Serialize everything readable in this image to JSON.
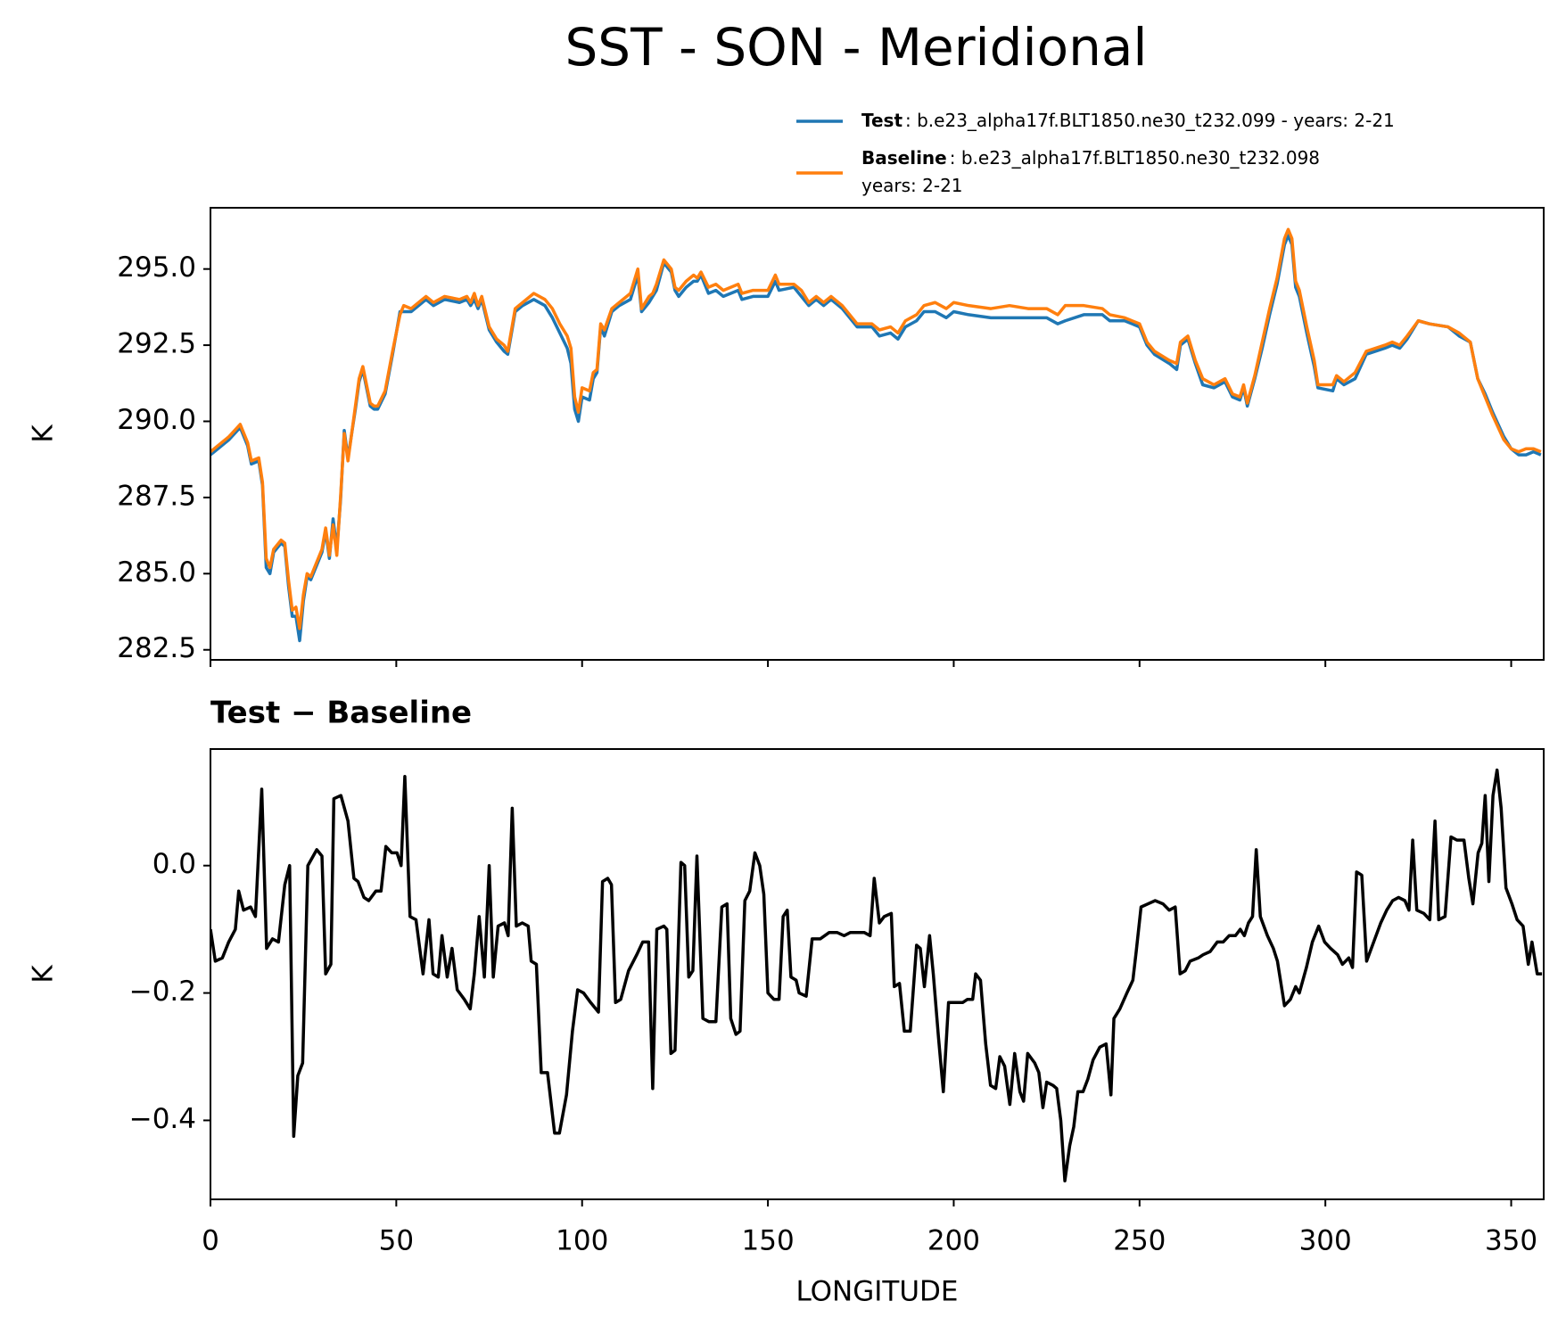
{
  "title": "SST - SON - Meridional",
  "chart_data": [
    {
      "type": "line",
      "ylabel": "K",
      "legend": "upper right",
      "xticklabels": false,
      "xlim": [
        0,
        358.75
      ],
      "xticks": [
        0,
        50,
        100,
        150,
        200,
        250,
        300,
        350
      ],
      "ylim": [
        282.17,
        297.01
      ],
      "yticks": [
        {
          "value": 282.5,
          "label": "282.5"
        },
        {
          "value": 285,
          "label": "285.0"
        },
        {
          "value": 287.5,
          "label": "287.5"
        },
        {
          "value": 290,
          "label": "290.0"
        },
        {
          "value": 292.5,
          "label": "292.5"
        },
        {
          "value": 295,
          "label": "295.0"
        }
      ],
      "x": [
        0,
        2,
        5,
        8,
        10,
        11,
        13,
        14,
        15,
        16,
        17,
        19,
        20,
        21,
        22,
        23,
        24,
        25,
        26,
        27,
        28,
        30,
        31,
        32,
        33,
        34,
        35,
        36,
        37,
        39,
        40,
        41,
        43,
        44,
        45,
        47,
        49,
        51,
        52,
        54,
        57,
        58,
        60,
        63,
        67,
        69,
        70,
        71,
        72,
        73,
        75,
        77,
        79,
        80,
        81,
        82,
        84,
        87,
        90,
        92,
        94,
        96,
        97,
        98,
        99,
        100,
        102,
        103,
        104,
        105,
        106,
        108,
        110,
        113,
        114,
        115,
        116,
        118,
        119,
        120,
        122,
        124,
        125,
        126,
        128,
        130,
        131,
        132,
        134,
        136,
        138,
        142,
        143,
        146,
        150,
        152,
        153,
        157,
        159,
        161,
        163,
        165,
        167,
        170,
        172,
        174,
        178,
        180,
        183,
        185,
        187,
        190,
        192,
        195,
        198,
        200,
        204,
        210,
        215,
        220,
        225,
        228,
        230,
        235,
        240,
        242,
        246,
        250,
        252,
        254,
        258,
        260,
        261,
        263,
        265,
        267,
        270,
        273,
        275,
        277,
        278,
        279,
        281,
        283,
        285,
        287,
        289,
        290,
        291,
        292,
        293,
        295,
        297,
        298,
        302,
        303,
        305,
        308,
        311,
        316,
        318,
        320,
        322,
        325,
        328,
        333,
        336,
        339,
        341,
        343,
        345,
        348,
        350,
        352,
        354,
        356,
        358
      ],
      "series": [
        {
          "name": "Test",
          "legend_text": [
            ": b.e23_alpha17f.BLT1850.ne30_t232.099 - years: 2-21"
          ],
          "color": "#1f77b4",
          "values": [
            288.9,
            289.1,
            289.4,
            289.8,
            289.2,
            288.6,
            288.7,
            287.9,
            285.2,
            285.0,
            285.7,
            286.0,
            285.9,
            284.6,
            283.6,
            283.6,
            282.8,
            284.1,
            284.9,
            284.8,
            285.1,
            285.7,
            286.4,
            285.5,
            286.8,
            285.8,
            287.4,
            289.7,
            288.8,
            290.4,
            291.3,
            291.7,
            290.5,
            290.4,
            290.4,
            290.9,
            292.2,
            293.6,
            293.6,
            293.6,
            293.9,
            294.0,
            293.8,
            294.0,
            293.9,
            294.0,
            293.8,
            294.0,
            293.7,
            294.0,
            293.0,
            292.6,
            292.3,
            292.2,
            292.9,
            293.6,
            293.8,
            294.0,
            293.8,
            293.4,
            292.9,
            292.4,
            291.9,
            290.4,
            290.0,
            290.8,
            290.7,
            291.4,
            291.6,
            293.1,
            292.8,
            293.6,
            293.8,
            294.0,
            294.4,
            294.8,
            293.6,
            293.9,
            294.1,
            294.3,
            295.2,
            294.9,
            294.3,
            294.1,
            294.4,
            294.6,
            294.6,
            294.8,
            294.2,
            294.3,
            294.1,
            294.3,
            294.0,
            294.1,
            294.1,
            294.6,
            294.3,
            294.4,
            294.1,
            293.8,
            294.0,
            293.8,
            294.0,
            293.7,
            293.4,
            293.1,
            293.1,
            292.8,
            292.9,
            292.7,
            293.1,
            293.3,
            293.6,
            293.6,
            293.4,
            293.6,
            293.5,
            293.4,
            293.4,
            293.4,
            293.4,
            293.2,
            293.3,
            293.5,
            293.5,
            293.3,
            293.3,
            293.1,
            292.5,
            292.2,
            291.9,
            291.7,
            292.5,
            292.7,
            291.9,
            291.2,
            291.1,
            291.3,
            290.8,
            290.7,
            291.1,
            290.5,
            291.4,
            292.4,
            293.5,
            294.5,
            295.8,
            296.1,
            295.8,
            294.4,
            294.1,
            292.9,
            291.8,
            291.1,
            291.0,
            291.4,
            291.2,
            291.4,
            292.2,
            292.4,
            292.5,
            292.4,
            292.7,
            293.3,
            293.2,
            293.1,
            292.8,
            292.6,
            291.4,
            290.9,
            290.3,
            289.5,
            289.1,
            288.9,
            288.9,
            289.0,
            288.9
          ]
        },
        {
          "name": "Baseline",
          "legend_text": [
            ": b.e23_alpha17f.BLT1850.ne30_t232.098",
            "years: 2-21"
          ],
          "color": "#ff7f0e",
          "values": [
            289.0,
            289.2,
            289.5,
            289.9,
            289.3,
            288.7,
            288.8,
            288.0,
            285.5,
            285.2,
            285.8,
            286.1,
            286.0,
            284.8,
            283.8,
            283.9,
            283.2,
            284.3,
            285.0,
            284.9,
            285.2,
            285.8,
            286.5,
            285.6,
            286.6,
            285.6,
            287.5,
            289.6,
            288.7,
            290.5,
            291.4,
            291.8,
            290.6,
            290.5,
            290.5,
            291.0,
            292.3,
            293.5,
            293.8,
            293.7,
            294.0,
            294.1,
            293.9,
            294.1,
            294.0,
            294.1,
            293.9,
            294.2,
            293.8,
            294.1,
            293.1,
            292.7,
            292.5,
            292.3,
            293.0,
            293.7,
            293.9,
            294.2,
            294.0,
            293.7,
            293.2,
            292.8,
            292.4,
            290.8,
            290.3,
            291.1,
            291.0,
            291.6,
            291.7,
            293.2,
            293.0,
            293.7,
            293.9,
            294.2,
            294.6,
            295.0,
            293.7,
            294.1,
            294.2,
            294.5,
            295.3,
            295.0,
            294.4,
            294.3,
            294.6,
            294.8,
            294.7,
            294.9,
            294.4,
            294.5,
            294.3,
            294.5,
            294.2,
            294.3,
            294.3,
            294.8,
            294.5,
            294.5,
            294.3,
            293.9,
            294.1,
            293.9,
            294.1,
            293.8,
            293.5,
            293.2,
            293.2,
            293.0,
            293.1,
            292.9,
            293.3,
            293.5,
            293.8,
            293.9,
            293.7,
            293.9,
            293.8,
            293.7,
            293.8,
            293.7,
            293.7,
            293.5,
            293.8,
            293.8,
            293.7,
            293.5,
            293.4,
            293.2,
            292.6,
            292.3,
            292.0,
            291.9,
            292.6,
            292.8,
            292.0,
            291.4,
            291.2,
            291.4,
            290.9,
            290.8,
            291.2,
            290.6,
            291.5,
            292.6,
            293.7,
            294.7,
            296.0,
            296.3,
            296.0,
            294.6,
            294.3,
            293.1,
            292.0,
            291.2,
            291.2,
            291.5,
            291.3,
            291.6,
            292.3,
            292.5,
            292.6,
            292.5,
            292.8,
            293.3,
            293.2,
            293.1,
            292.9,
            292.6,
            291.4,
            290.8,
            290.2,
            289.4,
            289.1,
            289.0,
            289.1,
            289.1,
            289.0
          ]
        }
      ]
    },
    {
      "type": "line",
      "title": "Test − Baseline",
      "xlabel": "LONGITUDE",
      "ylabel": "K",
      "xlim": [
        0,
        358.75
      ],
      "xticks": [
        0,
        50,
        100,
        150,
        200,
        250,
        300,
        350
      ],
      "ylim": [
        -0.524,
        0.183
      ],
      "yticks": [
        {
          "value": -0.4,
          "label": "−0.4"
        },
        {
          "value": -0.2,
          "label": "−0.2"
        },
        {
          "value": 0,
          "label": "0.0"
        }
      ],
      "x": [
        0,
        1.3,
        3.2,
        4.9,
        6.7,
        7.6,
        8.9,
        10.8,
        12.1,
        13.8,
        15.1,
        16.7,
        18.3,
        20,
        21.3,
        22.4,
        23.5,
        24.8,
        26.2,
        28.6,
        30,
        31,
        32.4,
        33.2,
        35.1,
        37,
        38.6,
        39.7,
        41.3,
        42.6,
        44.5,
        45.9,
        47.2,
        48.8,
        50.2,
        51.3,
        52.3,
        53.7,
        55.3,
        57.2,
        58.8,
        59.9,
        61.3,
        62.3,
        63.7,
        65,
        66.4,
        68.3,
        69.9,
        71,
        72.3,
        73.7,
        75,
        76.1,
        77.4,
        79.1,
        80.1,
        81.2,
        82.3,
        83.9,
        85.5,
        86.3,
        87.7,
        89,
        90.7,
        92.6,
        93.9,
        95.8,
        97.4,
        98.8,
        100.4,
        102.3,
        104.4,
        105.5,
        106.9,
        107.9,
        109,
        110.4,
        112.5,
        114.7,
        116.3,
        117.9,
        119,
        120.1,
        122,
        122.8,
        123.9,
        125,
        126.6,
        127.6,
        128.7,
        129.8,
        130.9,
        132.5,
        134.1,
        136,
        137.6,
        139,
        140,
        141.4,
        142.5,
        143.8,
        145.1,
        146.5,
        147.8,
        148.9,
        150,
        151.6,
        153,
        154.1,
        155.2,
        156.2,
        157.6,
        158.4,
        160.3,
        161.9,
        164.1,
        166.5,
        168.6,
        170.5,
        172.2,
        174.3,
        175.9,
        177.5,
        178.6,
        180,
        181.3,
        183.2,
        184,
        185.4,
        186.7,
        188.3,
        190,
        191,
        192.1,
        193.5,
        194.5,
        195.9,
        197.2,
        198.6,
        200.2,
        202.4,
        203.7,
        205.1,
        205.9,
        207.2,
        208.6,
        209.9,
        211.3,
        212.4,
        213.7,
        215.1,
        216.4,
        217.8,
        218.8,
        219.9,
        221.8,
        222.9,
        224,
        225,
        226.7,
        227.7,
        228.8,
        229.9,
        231.2,
        232.3,
        233.4,
        234.8,
        236.1,
        237.5,
        239.3,
        241,
        242.3,
        243.1,
        244.7,
        246.6,
        248.2,
        249.1,
        250.4,
        252.3,
        254.2,
        256.3,
        258,
        259.6,
        260.9,
        262.3,
        263.6,
        265.8,
        267.1,
        269,
        270.9,
        272.5,
        274.1,
        275.8,
        277.1,
        278.2,
        279.3,
        280.4,
        281.4,
        282.5,
        284.4,
        286,
        287.1,
        289,
        290.6,
        292,
        293,
        294.9,
        296.5,
        298.2,
        299.8,
        301.4,
        303.3,
        304.6,
        306.3,
        307.3,
        308.4,
        309.8,
        311.1,
        313,
        314.9,
        316.5,
        318.1,
        319.7,
        321.4,
        322.5,
        323.5,
        324.6,
        326.5,
        328.1,
        329.5,
        330.5,
        332.2,
        333.8,
        335.4,
        337.3,
        338.6,
        339.7,
        341.1,
        342.1,
        343,
        344,
        345.1,
        346.2,
        347.3,
        348.6,
        350.2,
        351.6,
        353.2,
        354.6,
        355.6,
        357,
        358.3
      ],
      "series": [
        {
          "name": "Test − Baseline",
          "color": "#000000",
          "values": [
            -0.1,
            -0.15,
            -0.145,
            -0.12,
            -0.1,
            -0.04,
            -0.07,
            -0.065,
            -0.08,
            0.12,
            -0.13,
            -0.115,
            -0.12,
            -0.03,
            0,
            -0.425,
            -0.33,
            -0.31,
            0,
            0.025,
            0.015,
            -0.17,
            -0.155,
            0.105,
            0.11,
            0.07,
            -0.02,
            -0.025,
            -0.05,
            -0.055,
            -0.04,
            -0.04,
            0.03,
            0.02,
            0.02,
            0,
            0.14,
            -0.08,
            -0.085,
            -0.17,
            -0.085,
            -0.17,
            -0.175,
            -0.11,
            -0.175,
            -0.13,
            -0.195,
            -0.21,
            -0.225,
            -0.17,
            -0.08,
            -0.175,
            0,
            -0.175,
            -0.095,
            -0.09,
            -0.11,
            0.09,
            -0.095,
            -0.09,
            -0.095,
            -0.15,
            -0.155,
            -0.325,
            -0.325,
            -0.42,
            -0.42,
            -0.36,
            -0.26,
            -0.195,
            -0.2,
            -0.215,
            -0.23,
            -0.025,
            -0.02,
            -0.03,
            -0.215,
            -0.21,
            -0.165,
            -0.14,
            -0.12,
            -0.12,
            -0.35,
            -0.1,
            -0.095,
            -0.1,
            -0.295,
            -0.29,
            0.005,
            0,
            -0.175,
            -0.165,
            0.015,
            -0.24,
            -0.245,
            -0.245,
            -0.065,
            -0.06,
            -0.24,
            -0.265,
            -0.26,
            -0.055,
            -0.04,
            0.02,
            0,
            -0.045,
            -0.2,
            -0.21,
            -0.21,
            -0.08,
            -0.07,
            -0.175,
            -0.18,
            -0.2,
            -0.205,
            -0.115,
            -0.115,
            -0.105,
            -0.105,
            -0.11,
            -0.105,
            -0.105,
            -0.105,
            -0.11,
            -0.02,
            -0.09,
            -0.08,
            -0.075,
            -0.19,
            -0.185,
            -0.26,
            -0.26,
            -0.125,
            -0.13,
            -0.19,
            -0.11,
            -0.17,
            -0.27,
            -0.355,
            -0.215,
            -0.215,
            -0.215,
            -0.21,
            -0.21,
            -0.17,
            -0.18,
            -0.28,
            -0.345,
            -0.35,
            -0.3,
            -0.315,
            -0.375,
            -0.295,
            -0.355,
            -0.37,
            -0.295,
            -0.31,
            -0.325,
            -0.38,
            -0.34,
            -0.345,
            -0.35,
            -0.4,
            -0.495,
            -0.44,
            -0.41,
            -0.355,
            -0.355,
            -0.335,
            -0.305,
            -0.285,
            -0.28,
            -0.36,
            -0.24,
            -0.225,
            -0.2,
            -0.18,
            -0.135,
            -0.065,
            -0.06,
            -0.055,
            -0.06,
            -0.07,
            -0.065,
            -0.17,
            -0.165,
            -0.15,
            -0.145,
            -0.14,
            -0.135,
            -0.12,
            -0.12,
            -0.11,
            -0.11,
            -0.1,
            -0.11,
            -0.09,
            -0.08,
            0.025,
            -0.08,
            -0.11,
            -0.13,
            -0.15,
            -0.22,
            -0.21,
            -0.19,
            -0.2,
            -0.16,
            -0.12,
            -0.095,
            -0.12,
            -0.13,
            -0.14,
            -0.155,
            -0.145,
            -0.16,
            -0.01,
            -0.015,
            -0.15,
            -0.12,
            -0.09,
            -0.07,
            -0.055,
            -0.05,
            -0.055,
            -0.07,
            0.04,
            -0.07,
            -0.075,
            -0.085,
            0.07,
            -0.085,
            -0.08,
            0.045,
            0.04,
            0.04,
            -0.02,
            -0.06,
            0.02,
            0.035,
            0.11,
            -0.025,
            0.11,
            0.15,
            0.09,
            -0.035,
            -0.06,
            -0.085,
            -0.095,
            -0.155,
            -0.12,
            -0.17,
            -0.17
          ]
        }
      ]
    }
  ]
}
